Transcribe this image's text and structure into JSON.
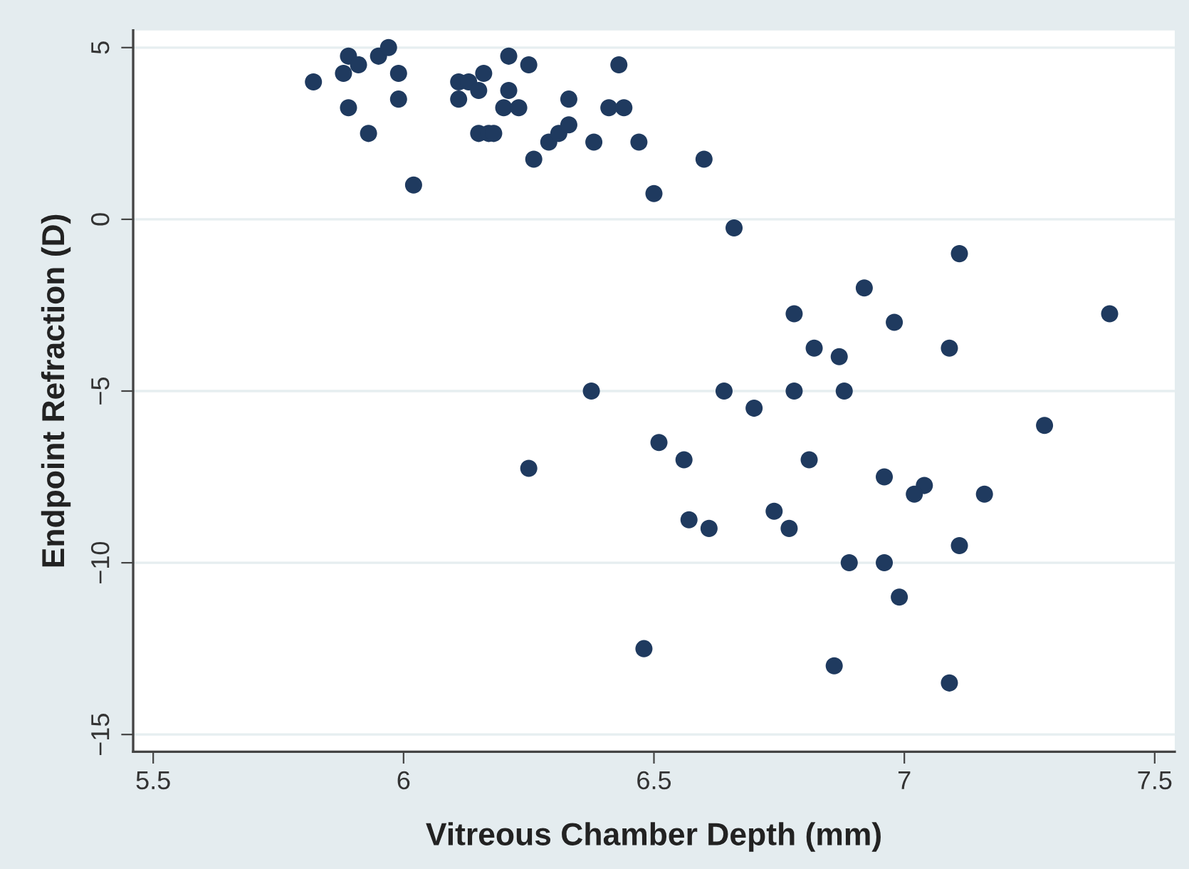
{
  "chart_data": {
    "type": "scatter",
    "xlabel": "Vitreous Chamber Depth (mm)",
    "ylabel": "Endpoint Refraction (D)",
    "x": [
      5.82,
      5.88,
      5.89,
      5.91,
      5.89,
      5.93,
      5.95,
      5.97,
      5.99,
      5.99,
      6.02,
      6.11,
      6.11,
      6.13,
      6.15,
      6.16,
      6.15,
      6.17,
      6.18,
      6.21,
      6.21,
      6.2,
      6.23,
      6.25,
      6.26,
      6.29,
      6.31,
      6.33,
      6.33,
      6.38,
      6.41,
      6.43,
      6.44,
      6.47,
      6.6,
      6.5,
      6.66,
      7.11,
      6.92,
      6.78,
      7.41,
      6.98,
      6.82,
      7.09,
      6.87,
      6.375,
      6.64,
      6.78,
      6.88,
      6.7,
      7.28,
      6.51,
      6.56,
      6.81,
      6.96,
      7.04,
      7.02,
      7.16,
      6.74,
      6.57,
      6.61,
      6.77,
      7.11,
      6.89,
      6.96,
      6.99,
      6.48,
      6.86,
      7.09,
      6.25
    ],
    "values": [
      4,
      4.25,
      4.75,
      4.5,
      3.25,
      2.5,
      4.75,
      5,
      4.25,
      3.5,
      1,
      4,
      3.5,
      4,
      3.75,
      4.25,
      2.5,
      2.5,
      2.5,
      4.75,
      3.75,
      3.25,
      3.25,
      4.5,
      1.75,
      2.25,
      2.5,
      2.75,
      3.5,
      2.25,
      3.25,
      4.5,
      3.25,
      2.25,
      1.75,
      0.75,
      -0.25,
      -1,
      -2,
      -2.75,
      -2.75,
      -3,
      -3.75,
      -3.75,
      -4,
      -5,
      -5,
      -5,
      -5,
      -5.5,
      -6,
      -6.5,
      -7,
      -7,
      -7.5,
      -7.75,
      -8,
      -8,
      -8.5,
      -8.75,
      -9,
      -9,
      -9.5,
      -10,
      -10,
      -11,
      -12.5,
      -13,
      -13.5,
      -7.25
    ],
    "color": "#1f3a5f",
    "marker": "circle",
    "xlim": [
      5.46,
      7.54
    ],
    "xticks": [
      5.5,
      6,
      6.5,
      7,
      7.5
    ],
    "ylim": [
      -15.5,
      5.5
    ],
    "yticks": [
      {
        "value": -15,
        "label": "−15"
      },
      {
        "value": -10,
        "label": "−10"
      },
      {
        "value": -5,
        "label": "−5"
      },
      0,
      5
    ],
    "grid": "y"
  }
}
